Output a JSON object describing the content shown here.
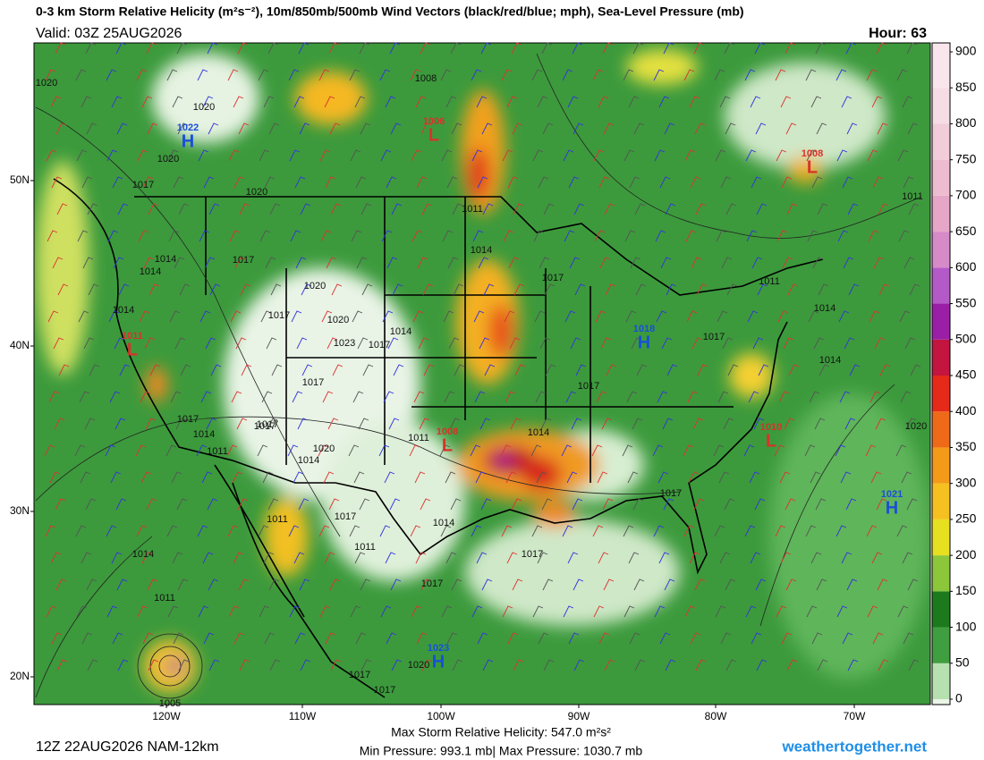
{
  "header": {
    "title": "0-3 km Storm Relative Helicity (m²s⁻²), 10m/850mb/500mb Wind Vectors (black/red/blue; mph), Sea-Level Pressure (mb)",
    "valid": "Valid: 03Z 25AUG2026",
    "hour": "Hour: 63"
  },
  "colorbar": {
    "ticks": [
      0,
      50,
      100,
      150,
      200,
      250,
      300,
      350,
      400,
      450,
      500,
      550,
      600,
      650,
      700,
      750,
      800,
      850,
      900
    ]
  },
  "latitudes": [
    "50N",
    "40N",
    "30N",
    "20N"
  ],
  "longitudes": [
    "120W",
    "110W",
    "100W",
    "90W",
    "80W",
    "70W"
  ],
  "centers": [
    {
      "pressure": "1022",
      "kind": "H"
    },
    {
      "pressure": "1006",
      "kind": "L"
    },
    {
      "pressure": "1008",
      "kind": "L"
    },
    {
      "pressure": "1018",
      "kind": "H"
    },
    {
      "pressure": "1011",
      "kind": "L"
    },
    {
      "pressure": "1008",
      "kind": "L"
    },
    {
      "pressure": "1010",
      "kind": "L"
    },
    {
      "pressure": "1021",
      "kind": "H"
    },
    {
      "pressure": "1023",
      "kind": "H"
    }
  ],
  "isobar_labels": [
    "1020",
    "1020",
    "1020",
    "1017",
    "1020",
    "1008",
    "1011",
    "1011",
    "1014",
    "1017",
    "1014",
    "1017",
    "1014",
    "1014",
    "1017",
    "1020",
    "1020",
    "1017",
    "1023",
    "1014",
    "1017",
    "1017",
    "1011",
    "1017",
    "1014",
    "1011",
    "1017",
    "1020",
    "1014",
    "1011",
    "1014",
    "1011",
    "1017",
    "1014",
    "1017",
    "1017",
    "1017",
    "1014",
    "1011",
    "1014",
    "1005",
    "1020",
    "1017",
    "1011",
    "1014",
    "1017",
    "1017",
    "1020",
    "1017"
  ],
  "footer": {
    "run": "12Z 22AUG2026 NAM-12km",
    "max_helicity": "Max Storm Relative Helicity: 547.0 m²s²",
    "pressure_range": "Min Pressure: 993.1 mb| Max Pressure: 1030.7 mb",
    "site": "weathertogether.net"
  }
}
